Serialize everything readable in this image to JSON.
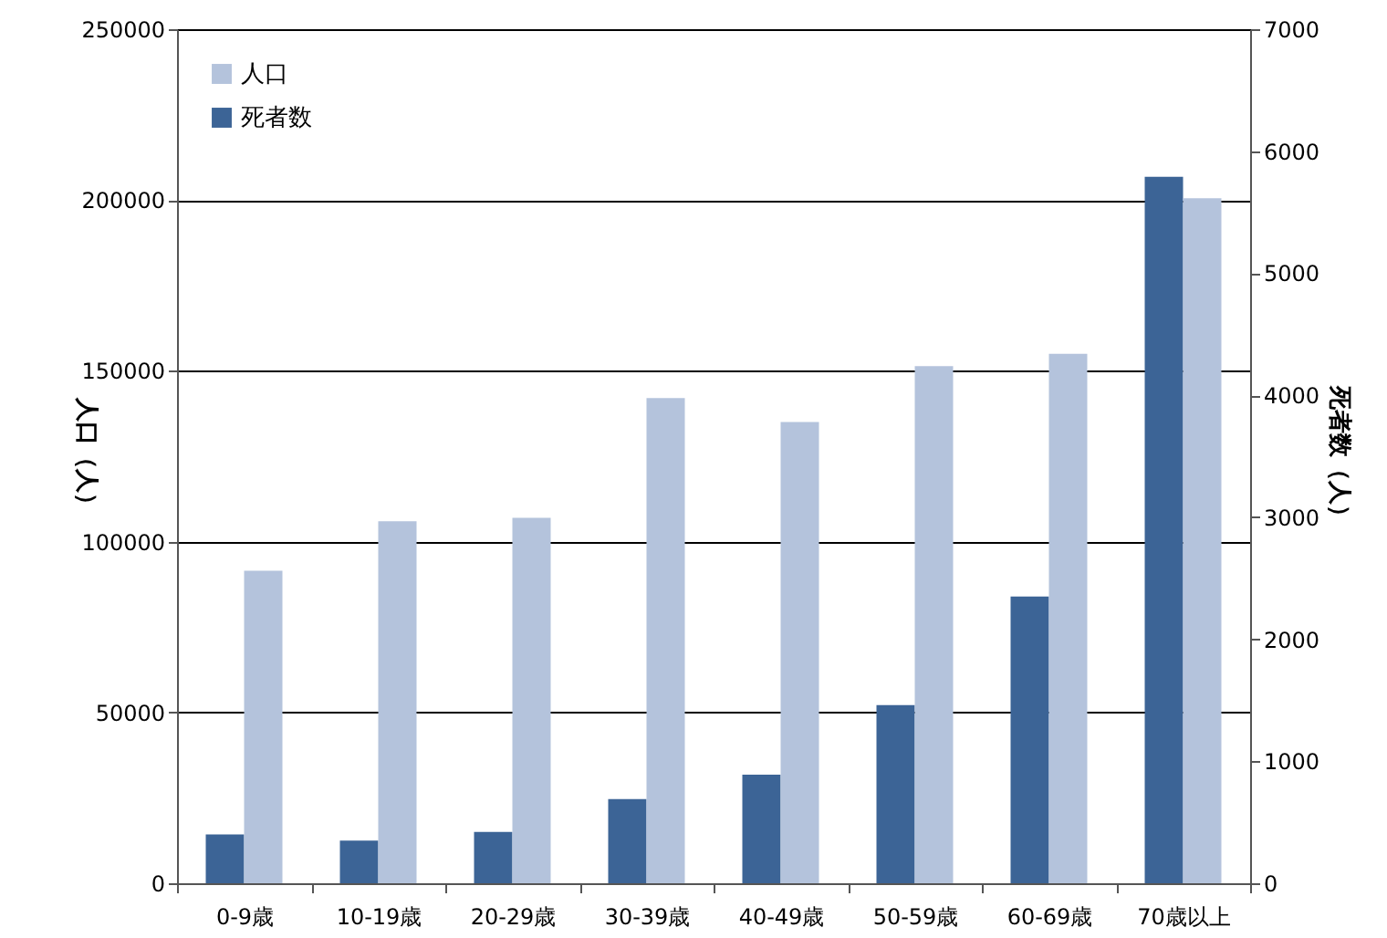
{
  "chart_data": {
    "type": "bar",
    "categories": [
      "0-9歳",
      "10-19歳",
      "20-29歳",
      "30-39歳",
      "40-49歳",
      "50-59歳",
      "60-69歳",
      "70歳以上"
    ],
    "series": [
      {
        "name": "死者数",
        "color": "#3c6496",
        "axis": "y2",
        "values": [
          400,
          350,
          420,
          690,
          890,
          1460,
          2350,
          5790
        ]
      },
      {
        "name": "人口",
        "color": "#b4c3dc",
        "values": [
          91500,
          106000,
          107000,
          142000,
          135000,
          151400,
          155000,
          200500
        ]
      }
    ],
    "ylabel": "人口（人）",
    "y2label": "死者数（人）",
    "ylim": [
      0,
      250000
    ],
    "yticks": [
      0,
      50000,
      100000,
      150000,
      200000,
      250000
    ],
    "y2lim": [
      0,
      7000
    ],
    "y2ticks": [
      0,
      1000,
      2000,
      3000,
      4000,
      5000,
      6000,
      7000
    ],
    "grid": "y",
    "legend": "top left"
  }
}
